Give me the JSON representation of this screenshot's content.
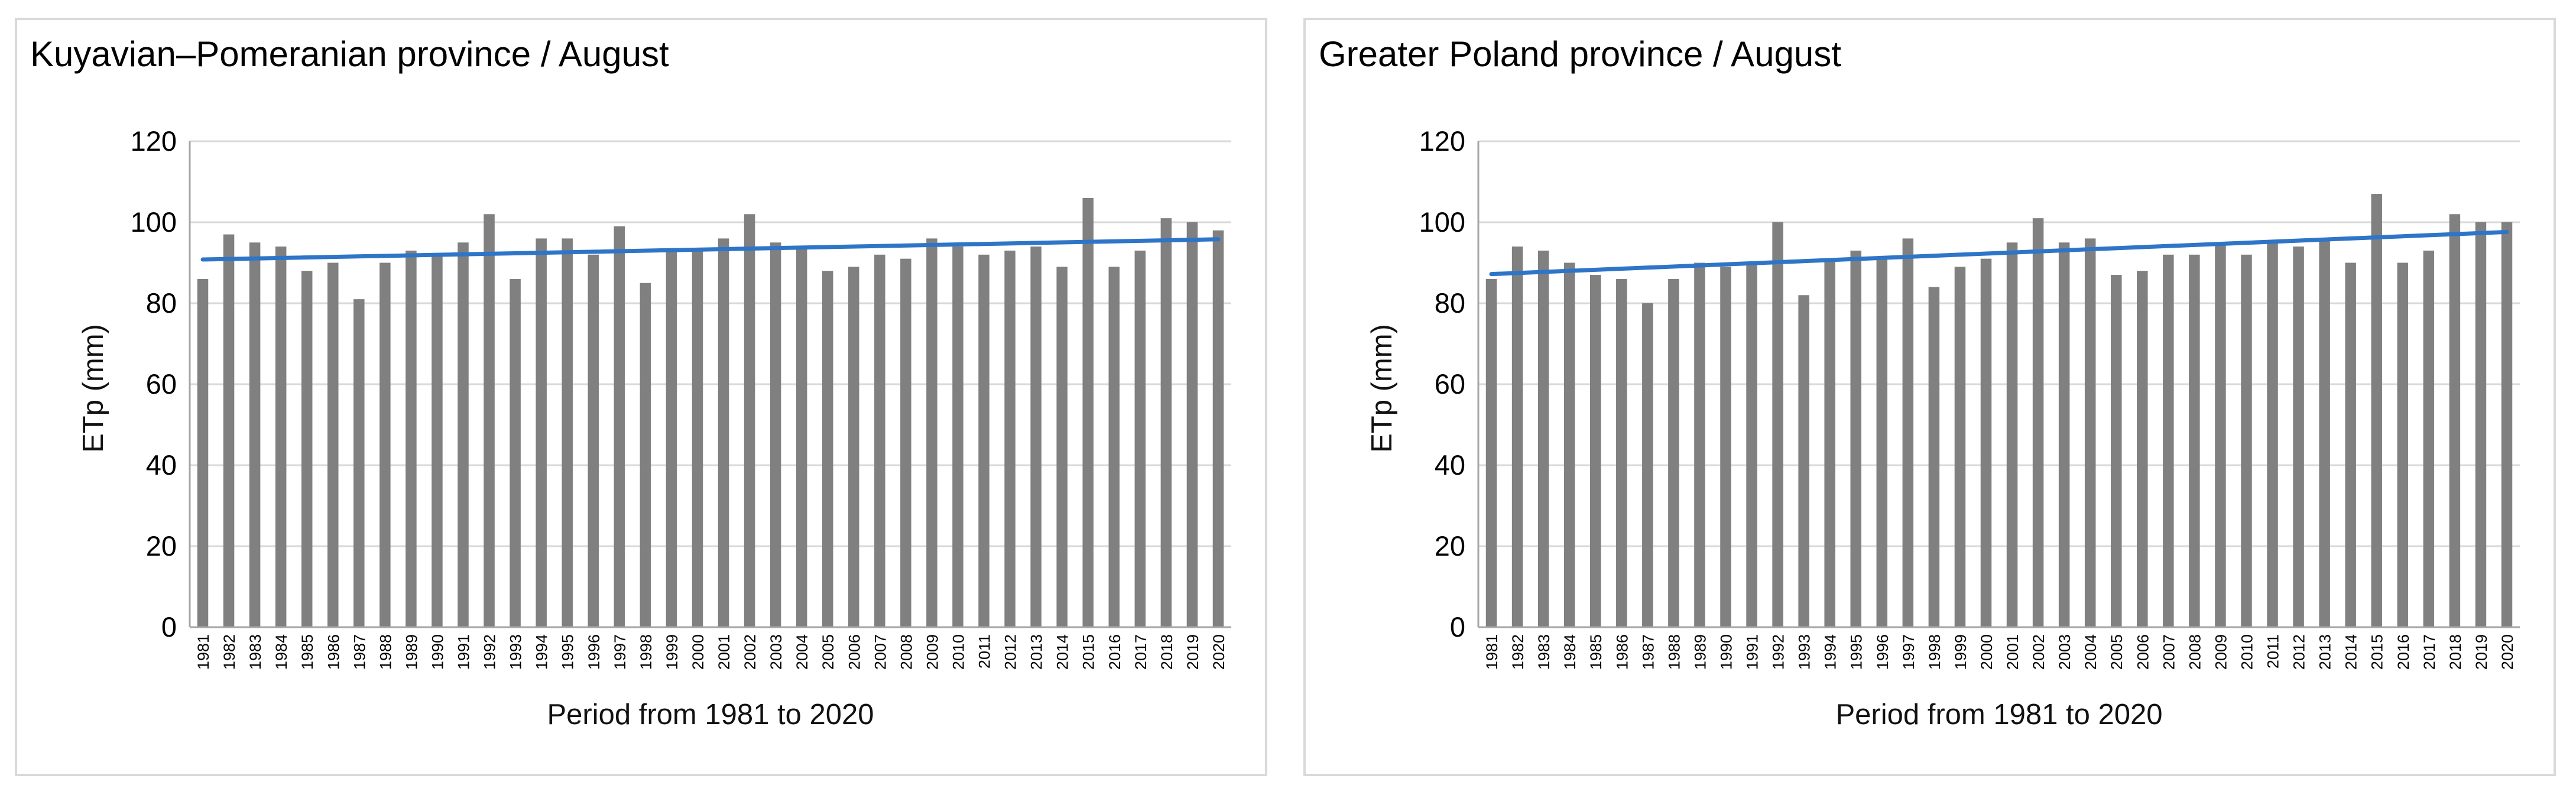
{
  "chart_data": [
    {
      "type": "bar",
      "title": "Kuyavian–Pomeranian province / August",
      "xlabel": "Period from 1981 to 2020",
      "ylabel": "ETp (mm)",
      "ylim": [
        0,
        120
      ],
      "yticks": [
        "0",
        "20",
        "40",
        "60",
        "80",
        "100",
        "120"
      ],
      "grid": true,
      "categories": [
        "1981",
        "1982",
        "1983",
        "1984",
        "1985",
        "1986",
        "1987",
        "1988",
        "1989",
        "1990",
        "1991",
        "1992",
        "1993",
        "1994",
        "1995",
        "1996",
        "1997",
        "1998",
        "1999",
        "2000",
        "2001",
        "2002",
        "2003",
        "2004",
        "2005",
        "2006",
        "2007",
        "2008",
        "2009",
        "2010",
        "2011",
        "2012",
        "2013",
        "2014",
        "2015",
        "2016",
        "2017",
        "2018",
        "2019",
        "2020"
      ],
      "values": [
        86,
        97,
        95,
        94,
        88,
        90,
        81,
        90,
        93,
        92,
        95,
        102,
        86,
        96,
        96,
        92,
        99,
        85,
        93,
        93,
        96,
        102,
        95,
        94,
        88,
        89,
        92,
        91,
        96,
        94,
        92,
        93,
        94,
        89,
        106,
        89,
        93,
        101,
        100,
        98
      ],
      "bar_color": "#808080",
      "trend": {
        "start": 90.8,
        "end": 95.8,
        "color": "#2e75c8"
      }
    },
    {
      "type": "bar",
      "title": "Greater Poland province / August",
      "xlabel": "Period from 1981 to 2020",
      "ylabel": "ETp (mm)",
      "ylim": [
        0,
        120
      ],
      "yticks": [
        "0",
        "20",
        "40",
        "60",
        "80",
        "100",
        "120"
      ],
      "grid": true,
      "categories": [
        "1981",
        "1982",
        "1983",
        "1984",
        "1985",
        "1986",
        "1987",
        "1988",
        "1989",
        "1990",
        "1991",
        "1992",
        "1993",
        "1994",
        "1995",
        "1996",
        "1997",
        "1998",
        "1999",
        "2000",
        "2001",
        "2002",
        "2003",
        "2004",
        "2005",
        "2006",
        "2007",
        "2008",
        "2009",
        "2010",
        "2011",
        "2012",
        "2013",
        "2014",
        "2015",
        "2016",
        "2017",
        "2018",
        "2019",
        "2020"
      ],
      "values": [
        86,
        94,
        93,
        90,
        87,
        86,
        80,
        86,
        90,
        89,
        90,
        100,
        82,
        91,
        93,
        91,
        96,
        84,
        89,
        91,
        95,
        101,
        95,
        96,
        87,
        88,
        92,
        92,
        95,
        92,
        95,
        94,
        96,
        90,
        107,
        90,
        93,
        102,
        100,
        100
      ],
      "bar_color": "#808080",
      "trend": {
        "start": 87.2,
        "end": 97.6,
        "color": "#2e75c8"
      }
    }
  ]
}
